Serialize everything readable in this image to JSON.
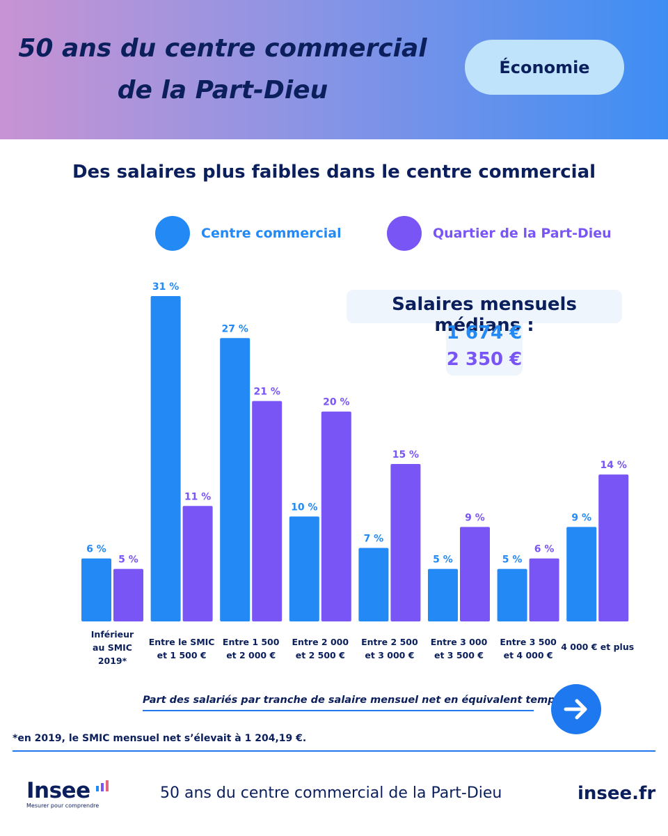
{
  "header": {
    "title_line1": "50 ans du centre commercial",
    "title_line2": "de la Part-Dieu",
    "tag": "Économie"
  },
  "colors": {
    "centre": "#2389f4",
    "quartier": "#7a55f5",
    "navy": "#0b1f5c",
    "accent_blue": "#1e78f0"
  },
  "median": {
    "title": "Salaires mensuels médians :",
    "centre_value": "1 674 €",
    "quartier_value": "2 350 €"
  },
  "chart_data": {
    "type": "bar",
    "title": "Des salaires plus faibles dans le centre commercial",
    "categories": [
      [
        "Inférieur",
        "au SMIC",
        "2019*"
      ],
      [
        "Entre le SMIC",
        "et 1 500 €"
      ],
      [
        "Entre 1 500",
        "et 2 000 €"
      ],
      [
        "Entre 2 000",
        "et 2 500 €"
      ],
      [
        "Entre 2 500",
        "et 3 000 €"
      ],
      [
        "Entre 3 000",
        "et 3 500 €"
      ],
      [
        "Entre 3 500",
        "et 4 000 €"
      ],
      [
        "4 000 € et plus"
      ]
    ],
    "series": [
      {
        "name": "Centre commercial",
        "color": "#2389f4",
        "values": [
          6,
          31,
          27,
          10,
          7,
          5,
          5,
          9
        ]
      },
      {
        "name": "Quartier de la Part-Dieu",
        "color": "#7a55f5",
        "values": [
          5,
          11,
          21,
          20,
          15,
          9,
          6,
          14
        ]
      }
    ],
    "value_suffix": " %",
    "ylim": [
      0,
      31
    ],
    "legend_position": "top",
    "grid": false,
    "note": "Part des salariés par tranche de salaire mensuel net en équivalent temps plein"
  },
  "footnote": "*en 2019, le SMIC mensuel net s’élevait à 1 204,19 €.",
  "footer": {
    "logo_word": "Insee",
    "logo_tagline": "Mesurer pour comprendre",
    "title": "50 ans du centre commercial de la Part-Dieu",
    "site": "insee.fr"
  }
}
